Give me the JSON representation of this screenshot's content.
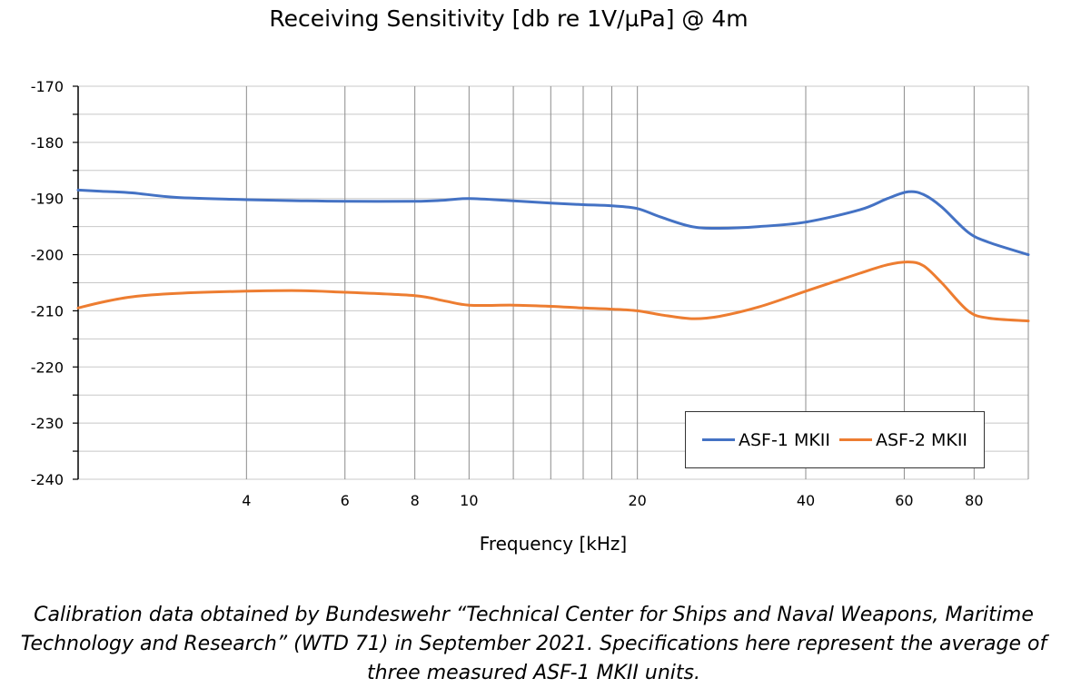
{
  "chart_data": {
    "type": "line",
    "title": "Receiving Sensitivity [db re 1V/µPa] @ 4m",
    "xlabel": "Frequency [kHz]",
    "ylabel": "",
    "x_scale": "log",
    "xlim": [
      2,
      100
    ],
    "ylim": [
      -240,
      -170
    ],
    "x_ticks": [
      4,
      6,
      8,
      10,
      20,
      40,
      60,
      80
    ],
    "x_tick_labels": [
      "4",
      "6",
      "8",
      "10",
      "20",
      "40",
      "60",
      "80"
    ],
    "x_gridlines": [
      4,
      6,
      8,
      10,
      12,
      14,
      16,
      18,
      20,
      40,
      60,
      80,
      100
    ],
    "y_ticks": [
      -170,
      -180,
      -190,
      -200,
      -210,
      -220,
      -230,
      -240
    ],
    "y_tick_labels": [
      "-170",
      "-180",
      "-190",
      "-200",
      "-210",
      "-220",
      "-230",
      "-240"
    ],
    "y_gridlines": [
      -170,
      -175,
      -180,
      -185,
      -190,
      -195,
      -200,
      -205,
      -210,
      -215,
      -220,
      -225,
      -230,
      -235,
      -240
    ],
    "grid": true,
    "legend_position": "bottom-right",
    "series": [
      {
        "name": "ASF-1 MKII",
        "color": "#4472C4",
        "x": [
          2.0,
          2.2,
          2.5,
          3.0,
          4.0,
          5.0,
          6.0,
          8.0,
          9.0,
          10.0,
          12.0,
          14.0,
          16.0,
          18.0,
          20.0,
          22.0,
          25.0,
          28.0,
          33.0,
          40.0,
          50.0,
          56.0,
          61.0,
          65.0,
          70.0,
          78.0,
          85.0,
          100.0
        ],
        "values": [
          -188.5,
          -188.7,
          -189.0,
          -189.8,
          -190.2,
          -190.4,
          -190.5,
          -190.5,
          -190.3,
          -190.0,
          -190.4,
          -190.8,
          -191.1,
          -191.3,
          -191.8,
          -193.3,
          -195.0,
          -195.3,
          -195.0,
          -194.2,
          -192.0,
          -190.0,
          -188.8,
          -189.3,
          -191.5,
          -196.0,
          -197.8,
          -200.0
        ]
      },
      {
        "name": "ASF-2 MKII",
        "color": "#ED7D31",
        "x": [
          2.0,
          2.2,
          2.5,
          3.0,
          4.0,
          5.0,
          6.0,
          8.0,
          9.0,
          10.0,
          12.0,
          14.0,
          16.0,
          18.0,
          20.0,
          22.0,
          25.0,
          28.0,
          33.0,
          40.0,
          50.0,
          56.0,
          61.0,
          65.0,
          70.0,
          78.0,
          85.0,
          100.0
        ],
        "values": [
          -209.5,
          -208.5,
          -207.5,
          -206.9,
          -206.5,
          -206.4,
          -206.7,
          -207.3,
          -208.2,
          -209.0,
          -209.0,
          -209.2,
          -209.5,
          -209.7,
          -210.0,
          -210.7,
          -211.4,
          -211.0,
          -209.3,
          -206.5,
          -203.3,
          -201.8,
          -201.3,
          -202.0,
          -205.0,
          -210.0,
          -211.3,
          -211.8
        ]
      }
    ]
  },
  "caption": "Calibration data obtained by Bundeswehr “Technical Center for Ships and Naval Weapons, Maritime Technology and Research” (WTD 71) in September 2021. Specifications here represent the average of three measured ASF-1 MKII units."
}
